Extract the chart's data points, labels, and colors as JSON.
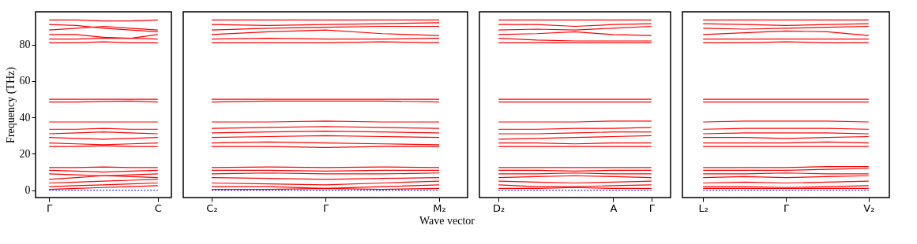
{
  "chart_data": [
    {
      "type": "line",
      "ylabel": "Frequency (THz)",
      "categories": [
        "Γ",
        null,
        null,
        null,
        "C"
      ],
      "ylim": [
        -4,
        98
      ],
      "yticks": [
        0,
        20,
        40,
        60,
        80
      ],
      "grid": false,
      "marker": "none",
      "series": [
        {
          "color": "#ff0000",
          "values": [
            0.5,
            1,
            1.5,
            2,
            2.5
          ]
        },
        {
          "color": "#ff0000",
          "values": [
            2,
            2.5,
            3,
            3.5,
            4
          ]
        },
        {
          "color": "#ff0000",
          "values": [
            4,
            4.5,
            5,
            5.5,
            6
          ]
        },
        {
          "color": "#ff0000",
          "values": [
            6,
            7,
            8,
            7.5,
            7
          ]
        },
        {
          "color": "#ff0000",
          "values": [
            9,
            8.5,
            8,
            8.5,
            9
          ]
        },
        {
          "color": "#ff0000",
          "values": [
            11,
            10.5,
            10,
            10.5,
            11
          ]
        },
        {
          "color": "#ff0000",
          "values": [
            12.5,
            12.5,
            12.8,
            12.5,
            12.5
          ]
        },
        {
          "color": "#ff0000",
          "values": [
            24,
            24,
            24.5,
            24,
            24
          ]
        },
        {
          "color": "#ff0000",
          "values": [
            26,
            25.5,
            25,
            25.5,
            26
          ]
        },
        {
          "color": "#ff0000",
          "values": [
            29,
            28.5,
            28,
            28.5,
            29
          ]
        },
        {
          "color": "#ff0000",
          "values": [
            31,
            31.5,
            32,
            31.5,
            31
          ]
        },
        {
          "color": "#ff0000",
          "values": [
            33.5,
            33.5,
            34,
            33.5,
            33.5
          ]
        },
        {
          "color": "#ff0000",
          "values": [
            37.5,
            37.5,
            37.5,
            37.5,
            37.5
          ]
        },
        {
          "color": "#ff0000",
          "values": [
            48.5,
            48.5,
            48.8,
            49,
            48.5
          ]
        },
        {
          "color": "#ff0000",
          "values": [
            50,
            50,
            50,
            50,
            50
          ]
        },
        {
          "color": "#ff0000",
          "values": [
            81,
            81,
            81.5,
            81,
            81
          ]
        },
        {
          "color": "#ff0000",
          "values": [
            83,
            83,
            83.5,
            83.5,
            83
          ]
        },
        {
          "color": "#ff0000",
          "values": [
            85.5,
            85.5,
            84,
            83.5,
            85.5
          ]
        },
        {
          "color": "#ff0000",
          "values": [
            88,
            89,
            90,
            89,
            88
          ]
        },
        {
          "color": "#ff0000",
          "values": [
            91,
            90.5,
            89,
            88,
            87
          ]
        },
        {
          "color": "#ff0000",
          "values": [
            93.5,
            93.5,
            93,
            93,
            93.5
          ]
        },
        {
          "color": "#0000ff",
          "line_style": "dotted",
          "values": [
            0,
            0,
            0,
            0,
            0
          ]
        }
      ]
    },
    {
      "type": "line",
      "xlabel": "Wave vector",
      "categories": [
        "C₂",
        null,
        "Γ",
        null,
        "M₂"
      ],
      "ylim": [
        -4,
        98
      ],
      "tick_labels": "x",
      "grid": false,
      "marker": "none",
      "series": [
        {
          "color": "#ff0000",
          "values": [
            0.5,
            0.5,
            1,
            0.5,
            1
          ]
        },
        {
          "color": "#ff0000",
          "values": [
            2,
            2,
            1,
            2,
            3
          ]
        },
        {
          "color": "#ff0000",
          "values": [
            4,
            3.5,
            3,
            4,
            5
          ]
        },
        {
          "color": "#ff0000",
          "values": [
            7,
            6.5,
            6,
            6.5,
            7
          ]
        },
        {
          "color": "#ff0000",
          "values": [
            9,
            9.5,
            9,
            9,
            9.5
          ]
        },
        {
          "color": "#ff0000",
          "values": [
            11,
            11,
            10.5,
            11,
            11
          ]
        },
        {
          "color": "#ff0000",
          "values": [
            12.5,
            12.8,
            12.5,
            12.8,
            12.5
          ]
        },
        {
          "color": "#ff0000",
          "values": [
            24,
            24,
            23.5,
            24,
            24
          ]
        },
        {
          "color": "#ff0000",
          "values": [
            26,
            26.5,
            26,
            25.5,
            25
          ]
        },
        {
          "color": "#ff0000",
          "values": [
            29,
            29.5,
            30,
            29.5,
            29
          ]
        },
        {
          "color": "#ff0000",
          "values": [
            31.5,
            32,
            32.5,
            32,
            31.5
          ]
        },
        {
          "color": "#ff0000",
          "values": [
            34,
            34.5,
            35,
            34.5,
            34
          ]
        },
        {
          "color": "#ff0000",
          "values": [
            37.5,
            37.5,
            38,
            37.5,
            37.5
          ]
        },
        {
          "color": "#ff0000",
          "values": [
            48.5,
            49,
            49,
            49,
            48.5
          ]
        },
        {
          "color": "#ff0000",
          "values": [
            50,
            50,
            50,
            50,
            50
          ]
        },
        {
          "color": "#ff0000",
          "values": [
            81,
            81,
            81,
            81.5,
            81
          ]
        },
        {
          "color": "#ff0000",
          "values": [
            83,
            83.5,
            83,
            83,
            83.5
          ]
        },
        {
          "color": "#ff0000",
          "values": [
            85.5,
            87,
            88,
            86,
            85
          ]
        },
        {
          "color": "#ff0000",
          "values": [
            88,
            89,
            89.5,
            90,
            90
          ]
        },
        {
          "color": "#ff0000",
          "values": [
            91,
            90.5,
            91,
            91.5,
            92
          ]
        },
        {
          "color": "#ff0000",
          "values": [
            93.5,
            93.5,
            93.5,
            93.5,
            93.5
          ]
        },
        {
          "color": "#0000ff",
          "line_style": "dotted",
          "values": [
            0,
            0,
            0,
            0,
            0
          ]
        }
      ]
    },
    {
      "type": "line",
      "categories": [
        "D₂",
        null,
        null,
        "A",
        "Γ"
      ],
      "ylim": [
        -4,
        98
      ],
      "tick_labels": "x",
      "grid": false,
      "marker": "none",
      "series": [
        {
          "color": "#ff0000",
          "values": [
            1,
            1,
            1.5,
            1,
            1
          ]
        },
        {
          "color": "#ff0000",
          "values": [
            3,
            2,
            2,
            2.5,
            3
          ]
        },
        {
          "color": "#ff0000",
          "values": [
            5,
            4.5,
            4,
            4.5,
            5
          ]
        },
        {
          "color": "#ff0000",
          "values": [
            7,
            7.5,
            8,
            7.5,
            7
          ]
        },
        {
          "color": "#ff0000",
          "values": [
            9,
            9,
            9.5,
            9,
            9
          ]
        },
        {
          "color": "#ff0000",
          "values": [
            11,
            11,
            10.5,
            11,
            11
          ]
        },
        {
          "color": "#ff0000",
          "values": [
            12.5,
            12.5,
            12.5,
            12.5,
            12.5
          ]
        },
        {
          "color": "#ff0000",
          "values": [
            24,
            24,
            24,
            24,
            24
          ]
        },
        {
          "color": "#ff0000",
          "values": [
            26,
            26,
            25.5,
            26,
            26
          ]
        },
        {
          "color": "#ff0000",
          "values": [
            28,
            28.5,
            29,
            29.5,
            30
          ]
        },
        {
          "color": "#ff0000",
          "values": [
            31,
            31,
            31.5,
            32,
            32
          ]
        },
        {
          "color": "#ff0000",
          "values": [
            33.5,
            33.5,
            34,
            34,
            34.5
          ]
        },
        {
          "color": "#ff0000",
          "values": [
            37.5,
            37.5,
            37.5,
            38,
            38
          ]
        },
        {
          "color": "#ff0000",
          "values": [
            48.5,
            48.5,
            48.5,
            48.5,
            48.5
          ]
        },
        {
          "color": "#ff0000",
          "values": [
            50,
            50,
            50,
            50,
            50
          ]
        },
        {
          "color": "#ff0000",
          "values": [
            81,
            81,
            81,
            81,
            81
          ]
        },
        {
          "color": "#ff0000",
          "values": [
            83.5,
            82.5,
            82,
            82,
            82
          ]
        },
        {
          "color": "#ff0000",
          "values": [
            85.5,
            86,
            87,
            85.5,
            85
          ]
        },
        {
          "color": "#ff0000",
          "values": [
            88,
            88.5,
            88,
            89,
            90
          ]
        },
        {
          "color": "#ff0000",
          "values": [
            91,
            91,
            90,
            91,
            91.5
          ]
        },
        {
          "color": "#ff0000",
          "values": [
            93.5,
            93.5,
            93.5,
            93.5,
            93.5
          ]
        },
        {
          "color": "#0000ff",
          "line_style": "dotted",
          "values": [
            0,
            0,
            0,
            0,
            0
          ]
        }
      ]
    },
    {
      "type": "line",
      "categories": [
        "L₂",
        null,
        "Γ",
        null,
        "V₂"
      ],
      "ylim": [
        -4,
        98
      ],
      "tick_labels": "x",
      "grid": false,
      "marker": "none",
      "series": [
        {
          "color": "#ff0000",
          "values": [
            1,
            1,
            1,
            1,
            1
          ]
        },
        {
          "color": "#ff0000",
          "values": [
            2,
            2,
            1.5,
            2,
            2.5
          ]
        },
        {
          "color": "#ff0000",
          "values": [
            4,
            4.5,
            4,
            4.5,
            5
          ]
        },
        {
          "color": "#ff0000",
          "values": [
            7,
            7.5,
            7,
            7.5,
            8
          ]
        },
        {
          "color": "#ff0000",
          "values": [
            9,
            9,
            9.5,
            9,
            9
          ]
        },
        {
          "color": "#ff0000",
          "values": [
            11,
            11,
            11,
            11.5,
            12
          ]
        },
        {
          "color": "#ff0000",
          "values": [
            12.5,
            12.5,
            12.5,
            13,
            13
          ]
        },
        {
          "color": "#ff0000",
          "values": [
            24,
            24,
            24,
            24,
            24
          ]
        },
        {
          "color": "#ff0000",
          "values": [
            26,
            26,
            26,
            26.5,
            26
          ]
        },
        {
          "color": "#ff0000",
          "values": [
            29,
            29,
            28.5,
            29,
            29.5
          ]
        },
        {
          "color": "#ff0000",
          "values": [
            31,
            31.5,
            31.5,
            31.5,
            31
          ]
        },
        {
          "color": "#ff0000",
          "values": [
            33.5,
            34,
            34,
            34,
            33.5
          ]
        },
        {
          "color": "#ff0000",
          "values": [
            37.5,
            38,
            38,
            38,
            37.5
          ]
        },
        {
          "color": "#ff0000",
          "values": [
            48.5,
            48.5,
            48.5,
            48.5,
            48.5
          ]
        },
        {
          "color": "#ff0000",
          "values": [
            50,
            50,
            50,
            50,
            50
          ]
        },
        {
          "color": "#ff0000",
          "values": [
            81,
            81,
            81.5,
            81,
            81
          ]
        },
        {
          "color": "#ff0000",
          "values": [
            83,
            83,
            83,
            83,
            83
          ]
        },
        {
          "color": "#ff0000",
          "values": [
            85.5,
            86.5,
            87.5,
            87,
            85
          ]
        },
        {
          "color": "#ff0000",
          "values": [
            89,
            88.5,
            89,
            89.5,
            90
          ]
        },
        {
          "color": "#ff0000",
          "values": [
            91.5,
            91,
            90.5,
            91,
            91.5
          ]
        },
        {
          "color": "#ff0000",
          "values": [
            93.5,
            93.5,
            93.5,
            93.5,
            93.5
          ]
        },
        {
          "color": "#0000ff",
          "line_style": "dotted",
          "values": [
            0,
            0,
            0,
            0,
            0
          ]
        }
      ]
    }
  ]
}
